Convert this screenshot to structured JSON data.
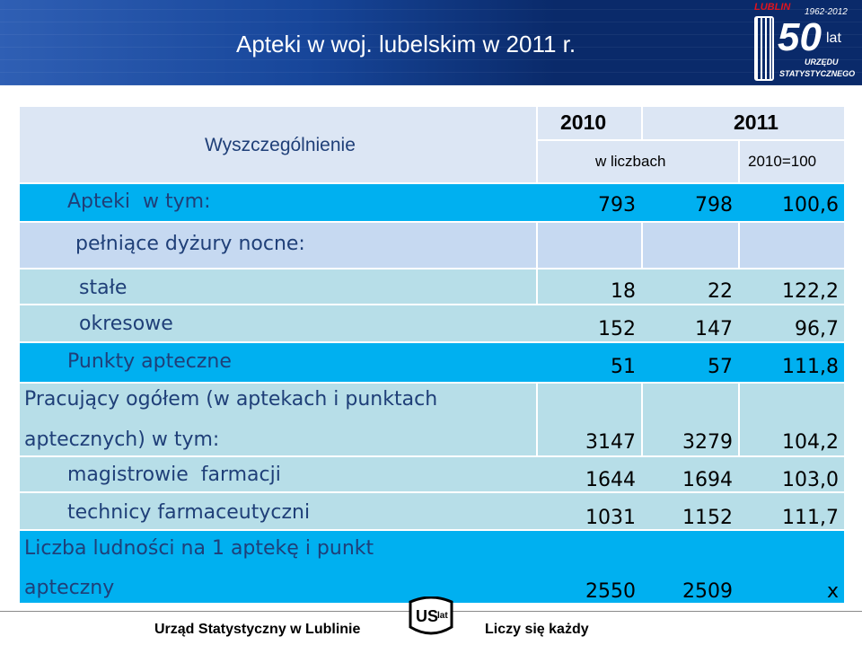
{
  "header": {
    "title": "Apteki w woj. lubelskim w 2011 r.",
    "logo": {
      "city": "LUBLIN",
      "years": "1962-2012",
      "number": "50",
      "suffix": "lat",
      "line1": "URZĘDU",
      "line2": "STATYSTYCZNEGO"
    }
  },
  "table": {
    "header": {
      "col0": "Wyszczególnienie",
      "year2010": "2010",
      "year2011": "2011",
      "unit": "w liczbach",
      "index": "2010=100"
    },
    "rows": [
      {
        "label": "Apteki  w tym:",
        "v2010": "793",
        "v2011": "798",
        "index": "100,6"
      },
      {
        "label": "pełniące dyżury nocne:",
        "v2010": "",
        "v2011": "",
        "index": ""
      },
      {
        "label": "stałe",
        "v2010": "18",
        "v2011": "22",
        "index": "122,2"
      },
      {
        "label": "okresowe",
        "v2010": "152",
        "v2011": "147",
        "index": "96,7"
      },
      {
        "label": "Punkty apteczne",
        "v2010": "51",
        "v2011": "57",
        "index": "111,8"
      },
      {
        "label_line1": "Pracujący ogółem (w aptekach i punktach",
        "label_line2": "aptecznych) w tym:",
        "v2010": "3147",
        "v2011": "3279",
        "index": "104,2"
      },
      {
        "label": "magistrowie  farmacji",
        "v2010": "1644",
        "v2011": "1694",
        "index": "103,0"
      },
      {
        "label": "technicy farmaceutyczni",
        "v2010": "1031",
        "v2011": "1152",
        "index": "111,7"
      },
      {
        "label_line1": "Liczba ludności na 1 aptekę i punkt",
        "label_line2": "apteczny",
        "v2010": "2550",
        "v2011": "2509",
        "index": "x"
      }
    ]
  },
  "footer": {
    "left": "Urząd Statystyczny w Lublinie",
    "right": "Liczy się każdy",
    "logo_text": "US",
    "logo_small": "lat"
  },
  "colors": {
    "banner": "#0a2a6a",
    "header_light": "#dce6f4",
    "row_blue": "#00b0f0",
    "row_light": "#c6d9f1",
    "row_teal": "#b7dee8",
    "text_blue": "#1f3f78"
  }
}
